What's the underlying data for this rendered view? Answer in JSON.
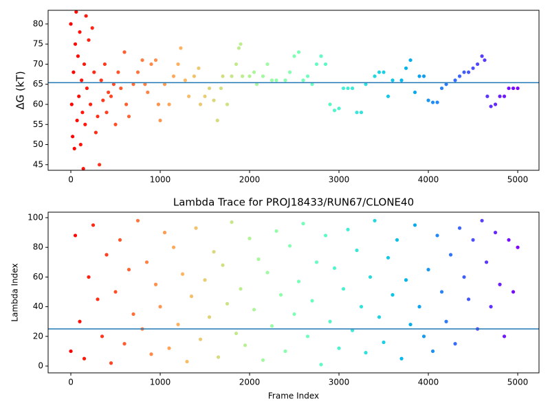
{
  "chart_data": [
    {
      "type": "scatter",
      "ylabel": "ΔG (kT)",
      "colormap": "rainbow_r",
      "hline": 65.4,
      "hline_color": "#1f77b4",
      "xlim": [
        -254,
        5238
      ],
      "ylim": [
        43.6,
        83.4
      ],
      "xticks": [
        0,
        1000,
        2000,
        3000,
        4000,
        5000
      ],
      "yticks": [
        45,
        50,
        55,
        60,
        65,
        70,
        75,
        80
      ],
      "x": [
        0,
        10,
        20,
        30,
        40,
        50,
        60,
        70,
        80,
        90,
        100,
        110,
        120,
        130,
        140,
        150,
        160,
        170,
        180,
        200,
        220,
        240,
        260,
        280,
        300,
        320,
        340,
        360,
        380,
        400,
        420,
        450,
        480,
        500,
        530,
        560,
        600,
        620,
        650,
        700,
        750,
        800,
        830,
        860,
        900,
        950,
        980,
        1000,
        1050,
        1100,
        1150,
        1200,
        1230,
        1280,
        1320,
        1380,
        1430,
        1450,
        1500,
        1550,
        1600,
        1640,
        1680,
        1700,
        1750,
        1800,
        1850,
        1880,
        1900,
        1920,
        2000,
        2050,
        2080,
        2150,
        2200,
        2250,
        2300,
        2400,
        2450,
        2500,
        2550,
        2600,
        2650,
        2700,
        2750,
        2800,
        2850,
        2900,
        2950,
        3000,
        3050,
        3100,
        3150,
        3200,
        3250,
        3300,
        3400,
        3450,
        3500,
        3550,
        3600,
        3700,
        3750,
        3800,
        3850,
        3900,
        3950,
        4000,
        4050,
        4100,
        4150,
        4200,
        4300,
        4350,
        4400,
        4450,
        4500,
        4550,
        4600,
        4630,
        4660,
        4700,
        4750,
        4800,
        4850,
        4900,
        4950,
        5000
      ],
      "values": [
        80,
        60,
        52,
        68,
        49,
        75,
        83,
        56,
        72,
        62,
        78,
        50,
        66,
        58,
        44,
        70,
        55,
        82,
        64,
        76,
        60,
        79,
        68,
        53,
        57,
        45,
        66,
        61,
        70,
        58,
        63,
        62,
        65,
        55,
        68,
        64,
        73,
        60,
        57,
        65,
        68,
        71,
        65,
        63,
        70,
        71,
        60,
        56,
        65,
        60,
        67,
        70,
        74,
        66,
        62,
        67,
        69,
        60,
        62,
        64,
        61,
        56,
        64,
        67,
        60,
        67,
        70,
        74,
        75,
        67,
        67,
        68,
        65,
        67,
        70,
        66,
        66,
        66,
        68,
        72,
        73,
        66,
        67,
        65,
        70,
        72,
        70,
        60,
        58.5,
        59,
        64,
        64,
        64,
        58,
        58,
        65,
        67,
        68,
        68,
        62,
        66,
        66,
        69,
        71,
        63,
        67,
        67,
        61,
        60.5,
        60.5,
        64,
        65,
        66,
        67,
        68,
        68,
        69,
        70,
        72,
        71,
        62,
        59.5,
        60,
        62,
        62,
        64,
        64,
        64
      ]
    },
    {
      "type": "scatter",
      "title": "Lambda Trace for PROJ18433/RUN67/CLONE40",
      "xlabel": "Frame Index",
      "ylabel": "Lambda Index",
      "colormap": "rainbow_r",
      "hline": 25,
      "hline_color": "#1f77b4",
      "xlim": [
        -254,
        5238
      ],
      "ylim": [
        -4.6,
        103.7
      ],
      "xticks": [
        0,
        1000,
        2000,
        3000,
        4000,
        5000
      ],
      "yticks": [
        0,
        20,
        40,
        60,
        80,
        100
      ],
      "x": [
        0,
        50,
        100,
        150,
        200,
        250,
        300,
        350,
        400,
        450,
        500,
        550,
        600,
        650,
        700,
        750,
        800,
        850,
        900,
        950,
        1000,
        1050,
        1100,
        1150,
        1200,
        1250,
        1300,
        1350,
        1400,
        1450,
        1500,
        1550,
        1600,
        1650,
        1700,
        1750,
        1800,
        1850,
        1900,
        1950,
        2000,
        2050,
        2100,
        2150,
        2200,
        2250,
        2300,
        2350,
        2400,
        2450,
        2500,
        2550,
        2600,
        2650,
        2700,
        2750,
        2800,
        2850,
        2900,
        2950,
        3000,
        3050,
        3100,
        3150,
        3200,
        3250,
        3300,
        3350,
        3400,
        3450,
        3500,
        3550,
        3600,
        3650,
        3700,
        3750,
        3800,
        3850,
        3900,
        3950,
        4000,
        4050,
        4100,
        4150,
        4200,
        4250,
        4300,
        4350,
        4400,
        4450,
        4500,
        4550,
        4600,
        4650,
        4700,
        4750,
        4800,
        4850,
        4900,
        4950,
        5000
      ],
      "values": [
        10,
        88,
        30,
        5,
        60,
        95,
        45,
        20,
        75,
        2,
        50,
        85,
        15,
        65,
        35,
        98,
        25,
        70,
        8,
        55,
        40,
        90,
        12,
        80,
        28,
        62,
        3,
        47,
        93,
        18,
        58,
        33,
        77,
        6,
        68,
        42,
        97,
        22,
        52,
        14,
        86,
        38,
        72,
        4,
        63,
        27,
        91,
        48,
        10,
        81,
        35,
        57,
        96,
        20,
        44,
        70,
        1,
        88,
        30,
        66,
        12,
        52,
        92,
        24,
        78,
        40,
        9,
        60,
        98,
        33,
        16,
        73,
        48,
        85,
        5,
        58,
        28,
        95,
        40,
        20,
        65,
        10,
        88,
        50,
        30,
        75,
        15,
        93,
        60,
        45,
        85,
        25,
        98,
        70,
        40,
        90,
        55,
        20,
        85,
        50,
        80
      ]
    }
  ]
}
